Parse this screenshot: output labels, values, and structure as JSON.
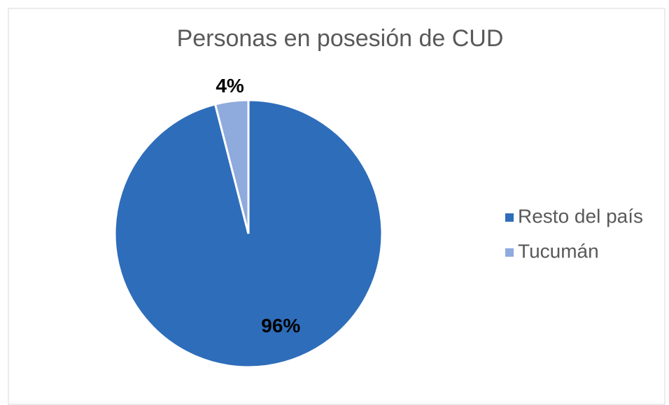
{
  "chart_data": {
    "type": "pie",
    "title": "Personas en posesión de CUD",
    "categories": [
      "Resto del país",
      "Tucumán"
    ],
    "values": [
      96,
      4
    ],
    "value_labels": [
      "96%",
      "4%"
    ],
    "colors": [
      "#2e6dba",
      "#8faadc"
    ],
    "legend": "right"
  }
}
